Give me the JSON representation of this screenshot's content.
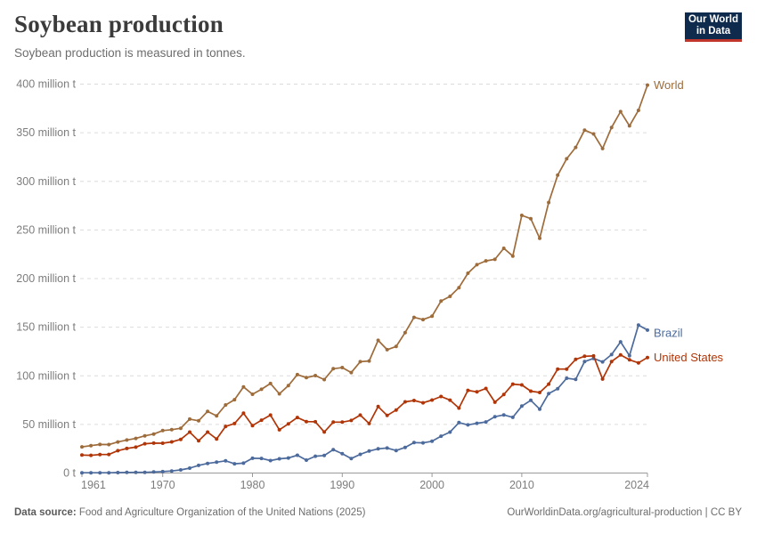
{
  "header": {
    "title": "Soybean production",
    "subtitle": "Soybean production is measured in tonnes.",
    "logo": {
      "line1": "Our World",
      "line2": "in Data"
    }
  },
  "footer": {
    "source_label": "Data source:",
    "source_text": " Food and Agriculture Organization of the United Nations (2025)",
    "link": "OurWorldinData.org/agricultural-production",
    "separator": " | ",
    "license": "CC BY"
  },
  "colors": {
    "world": "#9e6c3b",
    "brazil": "#4c6a9c",
    "united_states": "#b13507",
    "grid": "#dcdcdc",
    "axis": "#9a9a9a",
    "tick_text": "#7d7d7d",
    "logo_bg": "#0e2a4d",
    "logo_stripe": "#c0352c"
  },
  "chart_data": {
    "type": "line",
    "title": "Soybean production",
    "subtitle": "Soybean production is measured in tonnes.",
    "unit": "million t",
    "ylim": [
      0,
      400
    ],
    "grid": "horizontal-dashed",
    "legend_position": "end-of-line-labels",
    "yticks": [
      {
        "value": 0,
        "label": "0 t"
      },
      {
        "value": 50,
        "label": "50 million t"
      },
      {
        "value": 100,
        "label": "100 million t"
      },
      {
        "value": 150,
        "label": "150 million t"
      },
      {
        "value": 200,
        "label": "200 million t"
      },
      {
        "value": 250,
        "label": "250 million t"
      },
      {
        "value": 300,
        "label": "300 million t"
      },
      {
        "value": 350,
        "label": "350 million t"
      },
      {
        "value": 400,
        "label": "400 million t"
      }
    ],
    "xticks": [
      1961,
      1970,
      1980,
      1990,
      2000,
      2010,
      2024
    ],
    "x": [
      1961,
      1962,
      1963,
      1964,
      1965,
      1966,
      1967,
      1968,
      1969,
      1970,
      1971,
      1972,
      1973,
      1974,
      1975,
      1976,
      1977,
      1978,
      1979,
      1980,
      1981,
      1982,
      1983,
      1984,
      1985,
      1986,
      1987,
      1988,
      1989,
      1990,
      1991,
      1992,
      1993,
      1994,
      1995,
      1996,
      1997,
      1998,
      1999,
      2000,
      2001,
      2002,
      2003,
      2004,
      2005,
      2006,
      2007,
      2008,
      2009,
      2010,
      2011,
      2012,
      2013,
      2014,
      2015,
      2016,
      2017,
      2018,
      2019,
      2020,
      2021,
      2022,
      2023,
      2024
    ],
    "series": [
      {
        "name": "World",
        "color": "#9e6c3b",
        "label_dy": 0,
        "values": [
          26.9,
          28.2,
          29.4,
          29.3,
          31.9,
          34.0,
          35.6,
          38.3,
          40.1,
          43.7,
          44.6,
          46.0,
          55.5,
          53.7,
          63.4,
          58.9,
          70.0,
          75.4,
          88.6,
          81.0,
          86.1,
          92.1,
          81.5,
          89.9,
          101.2,
          98.1,
          100.2,
          96.1,
          107.3,
          108.5,
          103.3,
          114.5,
          115.2,
          136.5,
          126.9,
          130.2,
          144.4,
          160.1,
          157.8,
          161.3,
          176.8,
          181.7,
          190.7,
          205.5,
          214.3,
          218.2,
          219.8,
          231.1,
          223.2,
          265.0,
          261.6,
          241.4,
          278.3,
          306.4,
          323.2,
          334.9,
          352.7,
          348.7,
          333.7,
          355.4,
          371.7,
          357.1,
          373.0,
          399.0
        ]
      },
      {
        "name": "Brazil",
        "color": "#4c6a9c",
        "label_dy": 3,
        "values": [
          0.3,
          0.3,
          0.3,
          0.3,
          0.5,
          0.6,
          0.7,
          0.7,
          1.1,
          1.5,
          2.1,
          3.2,
          5.0,
          7.9,
          9.9,
          11.2,
          12.5,
          9.5,
          10.2,
          15.2,
          15.0,
          12.8,
          14.6,
          15.5,
          18.3,
          13.3,
          17.3,
          18.0,
          24.1,
          19.9,
          14.9,
          19.2,
          22.6,
          24.9,
          25.7,
          23.2,
          26.4,
          31.3,
          31.0,
          32.7,
          37.9,
          42.1,
          51.9,
          49.5,
          51.2,
          52.5,
          57.9,
          59.8,
          57.3,
          68.8,
          74.8,
          65.7,
          81.7,
          86.8,
          97.5,
          96.3,
          114.6,
          117.9,
          114.3,
          121.8,
          134.9,
          120.7,
          152.1,
          147.0
        ]
      },
      {
        "name": "United States",
        "color": "#b13507",
        "label_dy": 0,
        "values": [
          18.5,
          18.2,
          19.0,
          19.1,
          23.0,
          25.3,
          26.6,
          30.1,
          30.8,
          30.7,
          32.0,
          34.6,
          42.1,
          33.1,
          42.1,
          35.1,
          48.0,
          50.9,
          61.5,
          48.8,
          54.4,
          59.6,
          44.5,
          50.6,
          57.1,
          52.9,
          52.7,
          42.2,
          52.4,
          52.4,
          54.1,
          59.6,
          50.9,
          68.4,
          59.2,
          64.8,
          73.2,
          74.6,
          72.2,
          75.1,
          78.7,
          75.0,
          66.8,
          85.0,
          83.5,
          87.0,
          72.9,
          80.7,
          91.4,
          90.6,
          84.2,
          82.8,
          91.4,
          106.9,
          106.9,
          116.9,
          120.1,
          120.5,
          96.7,
          114.7,
          121.5,
          116.4,
          113.3,
          118.8
        ]
      }
    ]
  }
}
